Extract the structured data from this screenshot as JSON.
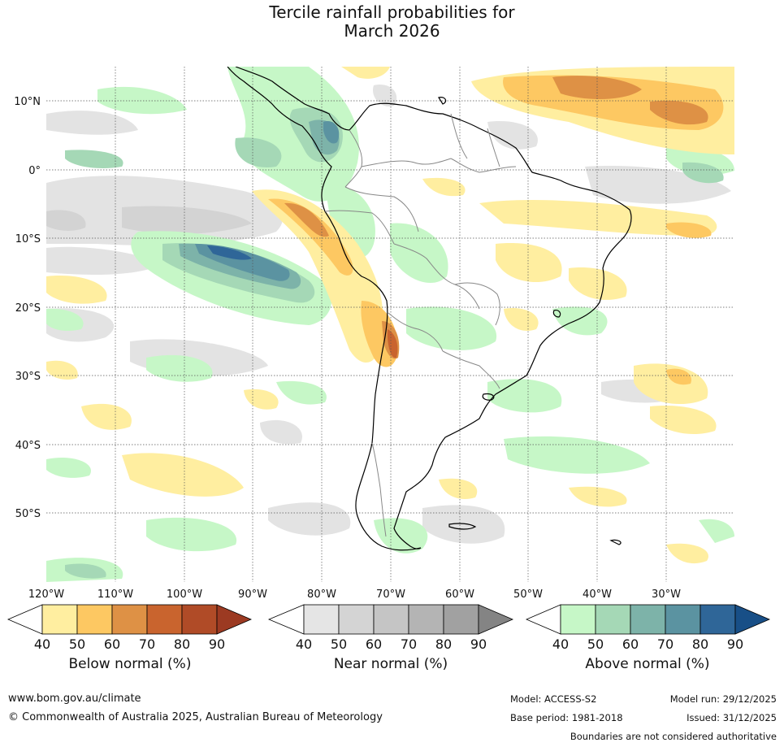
{
  "title": {
    "line1": "Tercile rainfall probabilities for",
    "line2": "March 2026"
  },
  "map": {
    "lat_labels": [
      "10°N",
      "0°",
      "10°S",
      "20°S",
      "30°S",
      "40°S",
      "50°S"
    ],
    "lon_labels": [
      "120°W",
      "110°W",
      "100°W",
      "90°W",
      "80°W",
      "70°W",
      "60°W",
      "50°W",
      "40°W",
      "30°W"
    ]
  },
  "colorbars": [
    {
      "label": "Below normal (%)",
      "ticks": [
        "40",
        "50",
        "60",
        "70",
        "80",
        "90"
      ],
      "colors": [
        "#ffeea0",
        "#fdc862",
        "#de9145",
        "#c9642e",
        "#b04b27",
        "#9c3a22"
      ]
    },
    {
      "label": "Near normal (%)",
      "ticks": [
        "40",
        "50",
        "60",
        "70",
        "80",
        "90"
      ],
      "colors": [
        "#e5e5e5",
        "#d4d4d4",
        "#c5c5c5",
        "#b4b4b4",
        "#a1a1a1",
        "#848484"
      ]
    },
    {
      "label": "Above normal (%)",
      "ticks": [
        "40",
        "50",
        "60",
        "70",
        "80",
        "90"
      ],
      "colors": [
        "#c6f7c7",
        "#a5d8b6",
        "#7db3a9",
        "#5b93a1",
        "#2f6698",
        "#184f87"
      ]
    }
  ],
  "footer": {
    "url": "www.bom.gov.au/climate",
    "copyright": "© Commonwealth of Australia 2025, Australian Bureau of Meteorology",
    "model": "Model: ACCESS-S2",
    "model_run": "Model run: 29/12/2025",
    "base_period": "Base period: 1981-2018",
    "issued": "Issued: 31/12/2025",
    "disclaimer": "Boundaries are not considered authoritative"
  }
}
